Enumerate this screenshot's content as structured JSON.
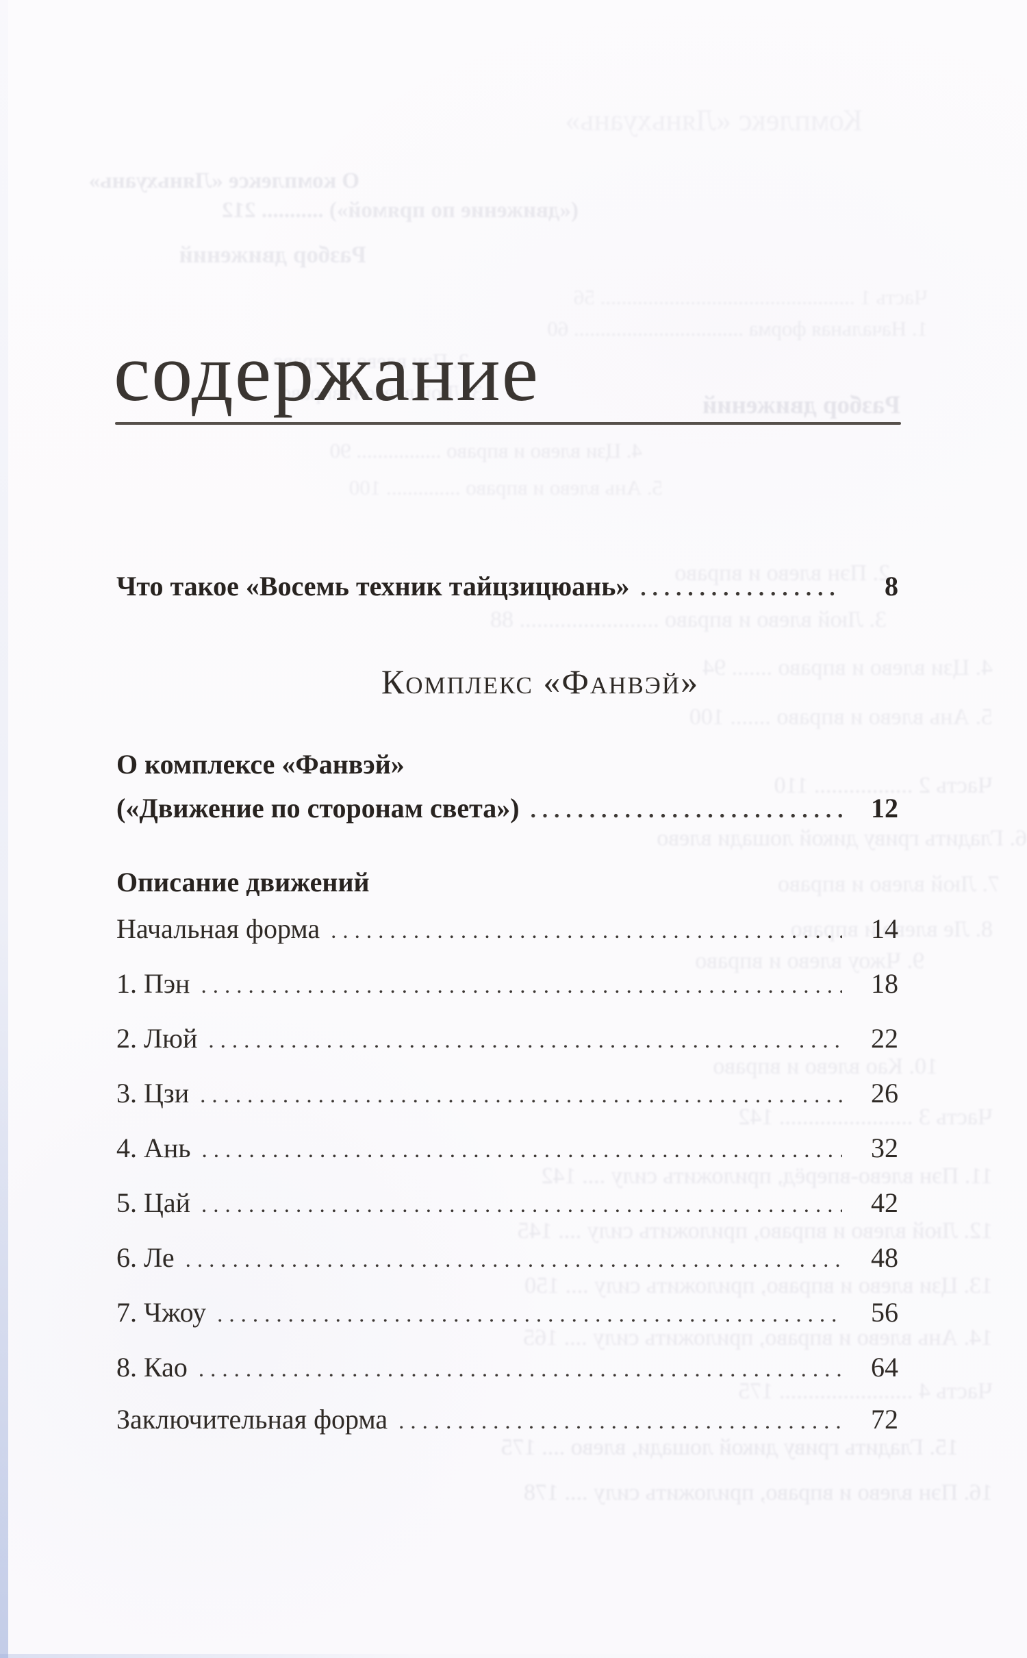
{
  "header": {
    "title": "содержание"
  },
  "toc": {
    "what_is": {
      "label": "Что такое «Восемь техник тайцзицюань»",
      "page": "8"
    },
    "section_heading": "Комплекс «Фанвэй»",
    "about_complex": {
      "line1": "О комплексе «Фанвэй»",
      "line2": "(«Движение по сторонам света»)",
      "page": "12"
    },
    "movements_heading": "Описание движений",
    "entries": [
      {
        "label": "Начальная форма",
        "page": "14"
      },
      {
        "label": "1. Пэн",
        "page": "18"
      },
      {
        "label": "2. Люй",
        "page": "22"
      },
      {
        "label": "3. Цзи",
        "page": "26"
      },
      {
        "label": "4. Ань",
        "page": "32"
      },
      {
        "label": "5. Цай",
        "page": "42"
      },
      {
        "label": "6. Ле",
        "page": "48"
      },
      {
        "label": "7. Чжоу",
        "page": "56"
      },
      {
        "label": "8. Као",
        "page": "64"
      },
      {
        "label": "Заключительная форма",
        "page": "72"
      }
    ]
  },
  "bleed_through": {
    "lines": [
      "Комплекс «Ляньхуань»",
      "О комплексе «Ляньхуань»",
      "(«движение по прямой») ........... 212",
      "Разбор движений",
      "Часть 1 ................................................ 56",
      "1. Начальная форма ................................ 60",
      "2. Пэн влево и вправо",
      "3. Люй влево и вправо",
      "Разбор движений",
      "4. Цзи влево и вправо ................ 90",
      "5. Ань влево и вправо .............. 100",
      "2. Пэн влево и вправо",
      "3. Люй влево и вправо ........................ 88",
      "4. Цзи влево и вправо ....... 94",
      "5. Ань влево и вправо ....... 100",
      "Часть 2 ................. 110",
      "6. Гладить гриву дикой лошади влево",
      "7. Люй влево и вправо",
      "8. Ле влево и вправо",
      "9. Чжоу влево и вправо",
      "10. Као влево и вправо",
      "Часть 3 ....................... 142",
      "11. Пэн влево-вперёд, приложить силу .... 142",
      "12. Люй влево и вправо, приложить силу .... 145",
      "13. Цзи влево и вправо, приложить силу .... 150",
      "14. Ань влево и вправо, приложить силу .... 165",
      "Часть 4 ....................... 175",
      "15. Гладить гриву дикой лошади, влево .... 175",
      "16. Пэн влево и вправо, приложить силу .... 178"
    ]
  }
}
